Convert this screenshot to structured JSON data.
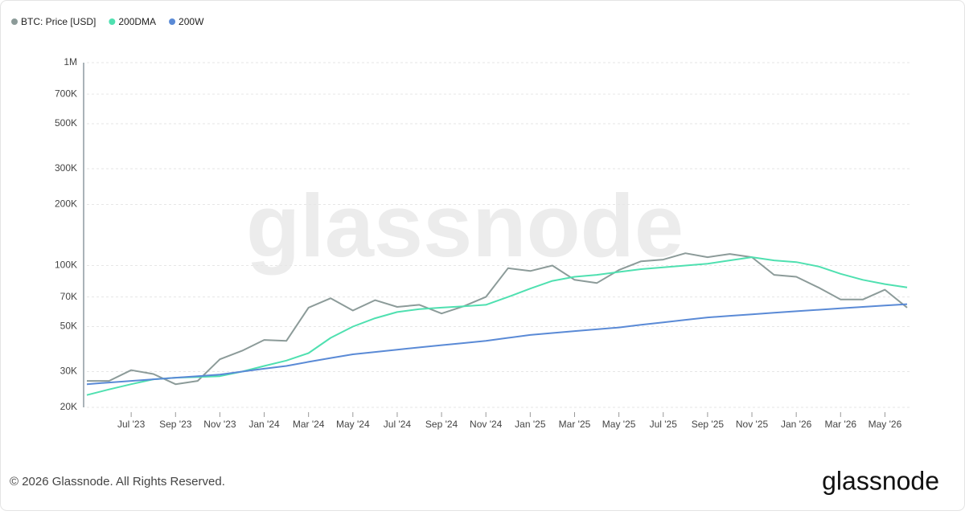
{
  "chart_data": {
    "type": "line",
    "log_scale": true,
    "grid": true,
    "legend": "top-left",
    "x": [
      "2023-05",
      "2023-06",
      "2023-07",
      "2023-08",
      "2023-09",
      "2023-10",
      "2023-11",
      "2023-12",
      "2024-01",
      "2024-02",
      "2024-03",
      "2024-04",
      "2024-05",
      "2024-06",
      "2024-07",
      "2024-08",
      "2024-09",
      "2024-10",
      "2024-11",
      "2024-12",
      "2025-01",
      "2025-02",
      "2025-03",
      "2025-04",
      "2025-05",
      "2025-06",
      "2025-07",
      "2025-08",
      "2025-09",
      "2025-10",
      "2025-11",
      "2025-12",
      "2026-01",
      "2026-02",
      "2026-03",
      "2026-04",
      "2026-05",
      "2026-06"
    ],
    "xlim": [
      "2023-05",
      "2026-06"
    ],
    "xticks": [
      {
        "value": "2023-07",
        "label": "Jul '23"
      },
      {
        "value": "2023-09",
        "label": "Sep '23"
      },
      {
        "value": "2023-11",
        "label": "Nov '23"
      },
      {
        "value": "2024-01",
        "label": "Jan '24"
      },
      {
        "value": "2024-03",
        "label": "Mar '24"
      },
      {
        "value": "2024-05",
        "label": "May '24"
      },
      {
        "value": "2024-07",
        "label": "Jul '24"
      },
      {
        "value": "2024-09",
        "label": "Sep '24"
      },
      {
        "value": "2024-11",
        "label": "Nov '24"
      },
      {
        "value": "2025-01",
        "label": "Jan '25"
      },
      {
        "value": "2025-03",
        "label": "Mar '25"
      },
      {
        "value": "2025-05",
        "label": "May '25"
      },
      {
        "value": "2025-07",
        "label": "Jul '25"
      },
      {
        "value": "2025-09",
        "label": "Sep '25"
      },
      {
        "value": "2025-11",
        "label": "Nov '25"
      },
      {
        "value": "2026-01",
        "label": "Jan '26"
      },
      {
        "value": "2026-03",
        "label": "Mar '26"
      },
      {
        "value": "2026-05",
        "label": "May '26"
      }
    ],
    "ylim": [
      20000,
      1000000
    ],
    "yticks": [
      {
        "value": 20000,
        "label": "20K"
      },
      {
        "value": 30000,
        "label": "30K"
      },
      {
        "value": 50000,
        "label": "50K"
      },
      {
        "value": 70000,
        "label": "70K"
      },
      {
        "value": 100000,
        "label": "100K"
      },
      {
        "value": 200000,
        "label": "200K"
      },
      {
        "value": 300000,
        "label": "300K"
      },
      {
        "value": 500000,
        "label": "500K"
      },
      {
        "value": 700000,
        "label": "700K"
      },
      {
        "value": 1000000,
        "label": "1M"
      }
    ],
    "series": [
      {
        "name": "BTC: Price [USD]",
        "color": "#8c9b99",
        "values": [
          27000,
          27000,
          30500,
          29200,
          26000,
          27000,
          34500,
          38000,
          43000,
          42500,
          62000,
          69000,
          60000,
          67500,
          62500,
          64000,
          58000,
          63000,
          70000,
          97000,
          94000,
          100000,
          85000,
          82000,
          95000,
          105000,
          107000,
          115000,
          110000,
          114000,
          110000,
          90000,
          88000,
          78000,
          68000,
          68000,
          76000,
          62000
        ]
      },
      {
        "name": "200DMA",
        "color": "#4fe0b0",
        "values": [
          23000,
          24500,
          26000,
          27500,
          28000,
          28200,
          28500,
          30000,
          32000,
          34000,
          37000,
          44000,
          50000,
          55000,
          59000,
          61000,
          62000,
          63000,
          64000,
          70000,
          77000,
          84000,
          88000,
          90000,
          93000,
          96000,
          98000,
          100000,
          102000,
          106000,
          110000,
          106000,
          104000,
          99000,
          91000,
          85000,
          81000,
          78000
        ]
      },
      {
        "name": "200W",
        "color": "#5a8ad6",
        "values": [
          26000,
          26500,
          27000,
          27500,
          28000,
          28500,
          29000,
          30000,
          31000,
          32000,
          33500,
          35000,
          36500,
          37500,
          38500,
          39500,
          40500,
          41500,
          42500,
          44000,
          45500,
          46500,
          47500,
          48500,
          49500,
          51000,
          52500,
          54000,
          55500,
          56500,
          57500,
          58500,
          59500,
          60500,
          61500,
          62500,
          63500,
          64500
        ]
      }
    ]
  },
  "watermark": "glassnode",
  "copyright": "© 2026 Glassnode. All Rights Reserved.",
  "logo": "glassnode"
}
